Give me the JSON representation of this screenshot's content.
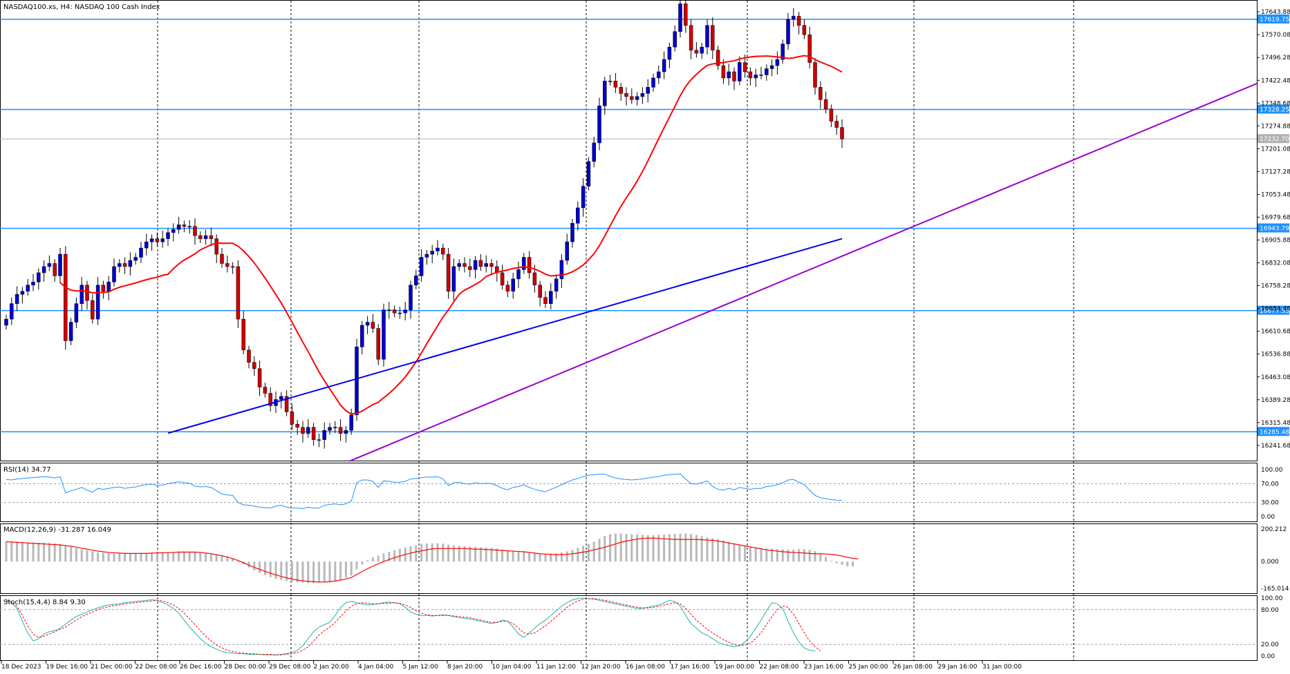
{
  "header": {
    "symbol": "NASDAQ100.xs, H4:  NASDAQ 100 Cash Index",
    "rsi_label": "RSI(14) 34.77",
    "macd_label": "MACD(12,26,9) -31.287 16.049",
    "stoch_label": "Stoch(15,4,4) 8.84 9.30"
  },
  "colors": {
    "bull": "#0000cc",
    "bear": "#cc0000",
    "ma_fast": "#ff0000",
    "ma_slow": "#0000ee",
    "trendline": "#9900cc",
    "hline": "#1e90ff",
    "grid": "#000000"
  },
  "chart_data": [
    {
      "type": "candlestick",
      "title": "NASDAQ100.xs, H4:  NASDAQ 100 Cash Index",
      "y_ticks": [
        "17643.88",
        "17570.08",
        "17496.28",
        "17422.48",
        "17348.68",
        "17274.88",
        "17201.08",
        "17127.28",
        "17053.48",
        "16979.68",
        "16905.88",
        "16832.08",
        "16758.28",
        "16684.48",
        "16610.68",
        "16536.88",
        "16463.08",
        "16389.28",
        "16315.48",
        "16241.68"
      ],
      "ylim": [
        16190,
        17680
      ],
      "x_ticks": [
        "18 Dec 2023",
        "19 Dec 16:00",
        "21 Dec 00:00",
        "22 Dec 08:00",
        "26 Dec 16:00",
        "28 Dec 00:00",
        "29 Dec 08:00",
        "2 Jan 20:00",
        "4 Jan 04:00",
        "5 Jan 12:00",
        "8 Jan 20:00",
        "10 Jan 04:00",
        "11 Jan 12:00",
        "12 Jan 20:00",
        "16 Jan 08:00",
        "17 Jan 16:00",
        "19 Jan 00:00",
        "22 Jan 08:00",
        "23 Jan 16:00",
        "25 Jan 00:00",
        "26 Jan 08:00",
        "29 Jan 16:00",
        "31 Jan 00:00"
      ],
      "horizontal_levels": [
        {
          "label": "17619.75",
          "value": 17619.75
        },
        {
          "label": "17328.25",
          "value": 17328.25
        },
        {
          "label": "16943.79",
          "value": 16943.79
        },
        {
          "label": "16677.53",
          "value": 16677.53
        },
        {
          "label": "16285.48",
          "value": 16285.48
        }
      ],
      "current_price": {
        "label": "17232.70",
        "value": 17232.7
      },
      "closes": [
        16650,
        16700,
        16730,
        16740,
        16760,
        16770,
        16800,
        16820,
        16830,
        16790,
        16860,
        16580,
        16640,
        16700,
        16760,
        16710,
        16650,
        16760,
        16740,
        16770,
        16820,
        16830,
        16820,
        16840,
        16850,
        16880,
        16900,
        16910,
        16900,
        16910,
        16930,
        16940,
        16955,
        16950,
        16950,
        16920,
        16910,
        16920,
        16910,
        16860,
        16830,
        16820,
        16820,
        16650,
        16550,
        16510,
        16490,
        16430,
        16410,
        16370,
        16390,
        16400,
        16350,
        16310,
        16300,
        16280,
        16300,
        16260,
        16260,
        16290,
        16300,
        16300,
        16280,
        16290,
        16340,
        16560,
        16630,
        16640,
        16620,
        16520,
        16680,
        16680,
        16670,
        16670,
        16680,
        16760,
        16790,
        16850,
        16860,
        16870,
        16880,
        16860,
        16740,
        16820,
        16830,
        16820,
        16810,
        16840,
        16820,
        16830,
        16820,
        16800,
        16760,
        16740,
        16780,
        16810,
        16850,
        16800,
        16760,
        16720,
        16700,
        16740,
        16780,
        16840,
        16900,
        16960,
        17010,
        17080,
        17160,
        17220,
        17340,
        17420,
        17420,
        17400,
        17380,
        17370,
        17360,
        17370,
        17380,
        17400,
        17430,
        17450,
        17490,
        17530,
        17580,
        17670,
        17600,
        17520,
        17510,
        17530,
        17600,
        17520,
        17470,
        17430,
        17450,
        17420,
        17480,
        17450,
        17430,
        17440,
        17440,
        17460,
        17470,
        17490,
        17540,
        17620,
        17630,
        17600,
        17570,
        17480,
        17400,
        17360,
        17330,
        17290,
        17270,
        17232.7
      ]
    },
    {
      "type": "line",
      "title": "RSI(14) 34.77",
      "y_ticks": [
        "100.00",
        "70.00",
        "30.00",
        "0.00"
      ],
      "ylim": [
        0,
        100
      ],
      "levels": [
        70,
        30
      ],
      "values": [
        79,
        78,
        80,
        81,
        82,
        83,
        84,
        85,
        84,
        82,
        85,
        50,
        55,
        58,
        62,
        56,
        52,
        60,
        58,
        60,
        62,
        63,
        60,
        62,
        63,
        66,
        68,
        69,
        66,
        67,
        70,
        72,
        74,
        72,
        71,
        65,
        63,
        64,
        62,
        55,
        48,
        46,
        45,
        30,
        25,
        24,
        22,
        20,
        19,
        18,
        22,
        24,
        20,
        18,
        18,
        17,
        20,
        18,
        18,
        24,
        26,
        27,
        25,
        27,
        33,
        72,
        78,
        78,
        75,
        62,
        76,
        75,
        73,
        73,
        75,
        80,
        81,
        83,
        84,
        84,
        85,
        80,
        66,
        72,
        73,
        70,
        69,
        72,
        70,
        71,
        70,
        66,
        60,
        57,
        62,
        64,
        68,
        62,
        58,
        55,
        53,
        58,
        62,
        68,
        73,
        78,
        81,
        85,
        88,
        89,
        90,
        90,
        86,
        82,
        80,
        79,
        78,
        79,
        80,
        82,
        84,
        85,
        88,
        89,
        90,
        91,
        80,
        70,
        69,
        72,
        76,
        64,
        58,
        56,
        60,
        57,
        62,
        60,
        58,
        60,
        60,
        64,
        65,
        68,
        72,
        78,
        79,
        73,
        68,
        56,
        45,
        40,
        38,
        36,
        35,
        34.77
      ]
    },
    {
      "type": "bar",
      "title": "MACD(12,26,9) -31.287 16.049",
      "y_ticks": [
        "200.212",
        "0.000",
        "-165.014"
      ],
      "ylim": [
        -165.014,
        200.212
      ],
      "histogram": [
        125,
        124,
        122,
        120,
        118,
        117,
        116,
        115,
        114,
        112,
        108,
        98,
        90,
        82,
        74,
        68,
        62,
        56,
        54,
        52,
        50,
        50,
        48,
        48,
        48,
        50,
        52,
        54,
        55,
        56,
        58,
        60,
        62,
        62,
        62,
        60,
        56,
        52,
        48,
        42,
        36,
        28,
        18,
        0,
        -18,
        -36,
        -54,
        -70,
        -84,
        -96,
        -106,
        -114,
        -120,
        -124,
        -128,
        -130,
        -132,
        -132,
        -130,
        -128,
        -124,
        -118,
        -110,
        -100,
        -86,
        -48,
        -18,
        8,
        26,
        36,
        50,
        60,
        70,
        78,
        86,
        94,
        100,
        108,
        110,
        112,
        112,
        110,
        104,
        100,
        96,
        94,
        92,
        90,
        88,
        86,
        84,
        80,
        74,
        68,
        64,
        62,
        60,
        56,
        52,
        48,
        46,
        48,
        50,
        56,
        62,
        72,
        84,
        96,
        108,
        122,
        140,
        158,
        168,
        172,
        172,
        170,
        168,
        166,
        164,
        162,
        162,
        164,
        166,
        168,
        170,
        172,
        172,
        170,
        164,
        156,
        148,
        142,
        138,
        130,
        120,
        112,
        104,
        98,
        92,
        86,
        82,
        80,
        78,
        76,
        76,
        74,
        74,
        76,
        76,
        72,
        64,
        48,
        28,
        4,
        -10,
        -20,
        -30,
        -31.287
      ],
      "signal": [
        122,
        120,
        118,
        116,
        114,
        112,
        110,
        108,
        106,
        104,
        102,
        98,
        94,
        88,
        82,
        76,
        70,
        64,
        60,
        56,
        54,
        52,
        50,
        50,
        50,
        50,
        50,
        52,
        53,
        54,
        55,
        56,
        58,
        58,
        58,
        58,
        56,
        52,
        48,
        42,
        36,
        28,
        18,
        6,
        -8,
        -22,
        -36,
        -48,
        -60,
        -72,
        -82,
        -92,
        -100,
        -108,
        -114,
        -118,
        -122,
        -124,
        -126,
        -126,
        -124,
        -120,
        -114,
        -108,
        -98,
        -80,
        -62,
        -44,
        -28,
        -14,
        0,
        12,
        24,
        34,
        44,
        52,
        60,
        66,
        72,
        78,
        80,
        80,
        80,
        80,
        80,
        80,
        78,
        76,
        76,
        74,
        72,
        70,
        68,
        66,
        64,
        62,
        60,
        56,
        52,
        48,
        46,
        44,
        42,
        42,
        44,
        48,
        52,
        58,
        64,
        72,
        80,
        88,
        98,
        108,
        118,
        126,
        132,
        138,
        142,
        144,
        144,
        142,
        140,
        138,
        136,
        136,
        136,
        136,
        136,
        134,
        132,
        130,
        126,
        120,
        114,
        108,
        102,
        96,
        90,
        84,
        78,
        72,
        68,
        64,
        60,
        58,
        56,
        54,
        52,
        50,
        48,
        48,
        46,
        44,
        40,
        34,
        26,
        20,
        16.049
      ]
    },
    {
      "type": "line",
      "title": "Stoch(15,4,4) 8.84 9.30",
      "y_ticks": [
        "100.00",
        "80.00",
        "20.00",
        "0.00"
      ],
      "ylim": [
        0,
        100
      ],
      "levels": [
        80,
        20
      ],
      "main": [
        96,
        92,
        82,
        60,
        40,
        26,
        30,
        38,
        42,
        44,
        48,
        55,
        62,
        68,
        72,
        76,
        80,
        83,
        86,
        88,
        89,
        90,
        92,
        93,
        94,
        95,
        96,
        97,
        96,
        92,
        88,
        82,
        74,
        62,
        50,
        40,
        30,
        22,
        16,
        12,
        8,
        6,
        5,
        4,
        4,
        3,
        3,
        3,
        2,
        2,
        2,
        3,
        4,
        6,
        10,
        18,
        30,
        42,
        50,
        54,
        58,
        70,
        84,
        92,
        94,
        92,
        90,
        88,
        89,
        90,
        92,
        93,
        92,
        90,
        84,
        76,
        72,
        70,
        70,
        69,
        70,
        71,
        70,
        68,
        66,
        65,
        64,
        62,
        60,
        58,
        56,
        58,
        62,
        60,
        50,
        38,
        32,
        40,
        48,
        56,
        62,
        70,
        78,
        86,
        92,
        97,
        99,
        100,
        99,
        98,
        96,
        94,
        92,
        90,
        88,
        86,
        84,
        82,
        82,
        84,
        86,
        88,
        92,
        96,
        94,
        86,
        70,
        56,
        48,
        40,
        36,
        30,
        24,
        20,
        18,
        16,
        18,
        24,
        34,
        48,
        62,
        78,
        92,
        90,
        82,
        60,
        40,
        24,
        14,
        10,
        8.84
      ],
      "signal": [
        95,
        93,
        86,
        70,
        52,
        38,
        32,
        34,
        38,
        42,
        46,
        50,
        56,
        62,
        68,
        72,
        76,
        80,
        83,
        85,
        87,
        88,
        90,
        91,
        92,
        93,
        94,
        95,
        96,
        95,
        92,
        88,
        82,
        74,
        64,
        54,
        44,
        34,
        26,
        19,
        14,
        10,
        8,
        6,
        5,
        4,
        4,
        3,
        3,
        3,
        2,
        2,
        3,
        4,
        6,
        10,
        16,
        26,
        36,
        44,
        50,
        58,
        68,
        78,
        86,
        90,
        92,
        91,
        90,
        90,
        91,
        91,
        92,
        91,
        88,
        84,
        78,
        74,
        71,
        70,
        70,
        70,
        70,
        69,
        68,
        67,
        66,
        64,
        62,
        60,
        58,
        58,
        60,
        60,
        56,
        48,
        40,
        38,
        40,
        46,
        52,
        60,
        68,
        76,
        84,
        90,
        95,
        98,
        99,
        99,
        98,
        96,
        94,
        92,
        90,
        88,
        86,
        84,
        83,
        83,
        84,
        86,
        88,
        90,
        92,
        90,
        82,
        72,
        62,
        54,
        46,
        40,
        34,
        28,
        24,
        20,
        18,
        19,
        22,
        30,
        40,
        54,
        68,
        80,
        86,
        84,
        72,
        56,
        40,
        26,
        16,
        9.3
      ]
    }
  ]
}
